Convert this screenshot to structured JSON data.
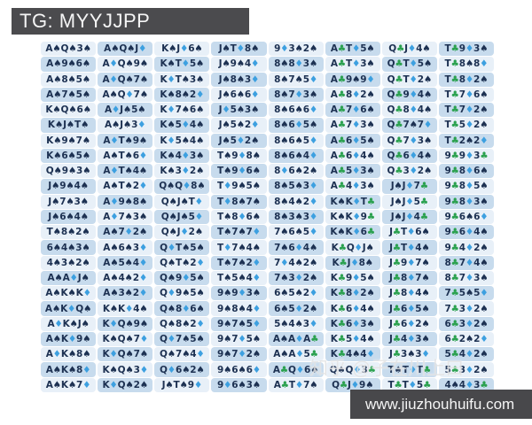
{
  "header": {
    "title": "TG: MYYJJPP"
  },
  "footer": {
    "url": "www.jiuzhouhuifu.com"
  },
  "watermark": {
    "text": "知乎 @子在川上曰"
  },
  "colors": {
    "top_bar": "#4b4b4e",
    "bottom_bar": "#48484b",
    "bar_text": "#f5f5f5",
    "rank": "#1d3152",
    "suit_spade": "#1d3152",
    "suit_heart": "#d94545",
    "suit_diamond": "#3da0e0",
    "suit_club": "#2ba14f",
    "cell_light": "#e8f0f8",
    "cell_dark": "#c7dbed",
    "watermark_text": "#e4e4e4"
  },
  "grid": {
    "columns": 8,
    "rows": [
      [
        "A♠Q♠3♠",
        "A♠Q♠J♦",
        "K♠J♦6♠",
        "J♠T♦8♠",
        "9♦3♠2♠",
        "A♣T♦5♠",
        "Q♣J♦4♠",
        "T♣9♦3♠"
      ],
      [
        "A♠9♠6♠",
        "A♦Q♠9♠",
        "K♠T♦5♠",
        "J♠9♠4♦",
        "8♠8♦3♠",
        "A♣T♦3♠",
        "Q♣T♦5♠",
        "T♣8♠8♦"
      ],
      [
        "A♠8♠5♠",
        "A♦Q♠7♠",
        "K♦T♠3♠",
        "J♠8♠3♦",
        "8♠7♠5♦",
        "A♣9♠9♦",
        "Q♣T♦2♠",
        "T♣8♦2♠"
      ],
      [
        "A♠7♠5♠",
        "A♠Q♦7♠",
        "K♠8♠2♦",
        "J♠6♠6♦",
        "8♠7♦3♠",
        "A♣8♦2♠",
        "Q♣9♦4♠",
        "T♣7♦6♠"
      ],
      [
        "K♠Q♠6♠",
        "A♦J♠5♠",
        "K♦7♠6♠",
        "J♦5♠3♠",
        "8♠6♠6♦",
        "A♣7♦6♠",
        "Q♣8♦4♠",
        "T♣7♦2♠"
      ],
      [
        "K♠J♠T♠",
        "A♠J♠3♦",
        "K♠5♦4♠",
        "J♠5♠2♦",
        "8♠6♦5♠",
        "A♣7♦3♠",
        "Q♣7♠7♦",
        "T♣5♦2♠"
      ],
      [
        "K♠9♠7♠",
        "A♦T♠9♠",
        "K♦5♠4♠",
        "J♠5♦2♠",
        "8♠6♠5♦",
        "A♣6♦5♠",
        "Q♣7♦3♠",
        "T♣2♠2♦"
      ],
      [
        "K♠6♠5♠",
        "A♠T♠6♦",
        "K♠4♦3♠",
        "T♠9♦8♠",
        "8♠6♠4♦",
        "A♣6♦4♠",
        "Q♣6♦4♠",
        "9♣9♦3♣"
      ],
      [
        "Q♠9♠3♠",
        "A♦T♠4♠",
        "K♠3♦2♠",
        "T♠9♦6♠",
        "8♦6♠2♠",
        "A♣5♦3♠",
        "Q♣3♦2♠",
        "9♣8♦6♠"
      ],
      [
        "J♠9♠4♠",
        "A♠T♠2♦",
        "Q♠Q♦8♠",
        "T♦9♠5♠",
        "8♠5♠3♦",
        "A♣4♦3♠",
        "J♠J♦7♣",
        "9♣8♦5♠"
      ],
      [
        "J♠7♠3♠",
        "A♦9♠8♠",
        "Q♠J♠T♦",
        "T♦8♠7♠",
        "8♠4♠2♦",
        "K♠K♦T♣",
        "J♠J♦5♣",
        "9♣8♦3♠"
      ],
      [
        "J♠6♠4♠",
        "A♦7♠3♠",
        "Q♠J♠5♦",
        "T♠8♦6♠",
        "8♠3♠3♦",
        "K♠K♦9♣",
        "J♠J♦4♣",
        "9♣6♠6♦"
      ],
      [
        "T♠8♠2♠",
        "A♠7♦2♠",
        "Q♠J♦2♠",
        "T♠7♠7♦",
        "7♠6♠5♦",
        "K♠K♦6♣",
        "J♣T♦6♠",
        "9♣6♦4♠"
      ],
      [
        "6♠4♠3♠",
        "A♠6♠3♦",
        "Q♦T♠5♠",
        "T♦7♠4♠",
        "7♠6♦4♠",
        "K♣Q♦J♠",
        "J♣T♦4♠",
        "9♣4♦2♠"
      ],
      [
        "4♠3♠2♠",
        "A♠5♠4♦",
        "Q♠T♠2♦",
        "T♠7♠2♦",
        "7♦4♠2♠",
        "K♣J♦8♠",
        "J♣9♦7♠",
        "8♣7♦4♠"
      ],
      [
        "A♠A♦J♠",
        "A♠4♠2♦",
        "Q♠9♦5♠",
        "T♠5♠4♦",
        "7♠3♦2♠",
        "K♣9♦5♠",
        "J♣8♦7♠",
        "8♣7♦3♠"
      ],
      [
        "A♠K♠K♦",
        "A♠3♠2♦",
        "Q♦9♠5♠",
        "9♠9♦3♠",
        "6♠5♠2♦",
        "K♣8♦2♠",
        "J♣8♦4♠",
        "7♣5♠5♦"
      ],
      [
        "A♠K♦Q♠",
        "K♠K♦4♠",
        "Q♠8♦6♠",
        "9♠8♠4♦",
        "6♠5♦2♠",
        "K♣6♦4♠",
        "J♣6♦5♠",
        "7♣3♦2♠"
      ],
      [
        "A♦K♠J♠",
        "K♦Q♠9♠",
        "Q♠8♠2♦",
        "9♠7♠5♦",
        "5♠4♠3♦",
        "K♣6♦3♠",
        "J♣6♦2♠",
        "6♣3♦2♠"
      ],
      [
        "A♠K♦9♠",
        "K♠Q♠7♦",
        "Q♦7♠5♠",
        "9♠7♦5♠",
        "A♠A♦A♣",
        "K♣5♦4♠",
        "J♣4♦3♠",
        "6♣2♠2♦"
      ],
      [
        "A♦K♠8♠",
        "K♦Q♠7♠",
        "Q♠7♠4♦",
        "9♠7♦2♠",
        "A♠A♦5♣",
        "K♣4♠4♦",
        "J♣3♠3♦",
        "5♣4♦2♠"
      ],
      [
        "A♠K♠8♦",
        "K♠Q♠3♦",
        "Q♦6♠2♠",
        "9♠6♠6♦",
        "A♣Q♦6♠",
        "Q♠Q♦3♣",
        "T♠T♦T♣",
        "5♣3♦2♠"
      ],
      [
        "A♠K♠7♦",
        "K♦Q♠2♠",
        "J♠T♠9♦",
        "9♦6♠3♠",
        "A♣T♦7♠",
        "Q♣J♦9♠",
        "T♣T♦5♣",
        "4♠4♦3♣"
      ]
    ]
  }
}
